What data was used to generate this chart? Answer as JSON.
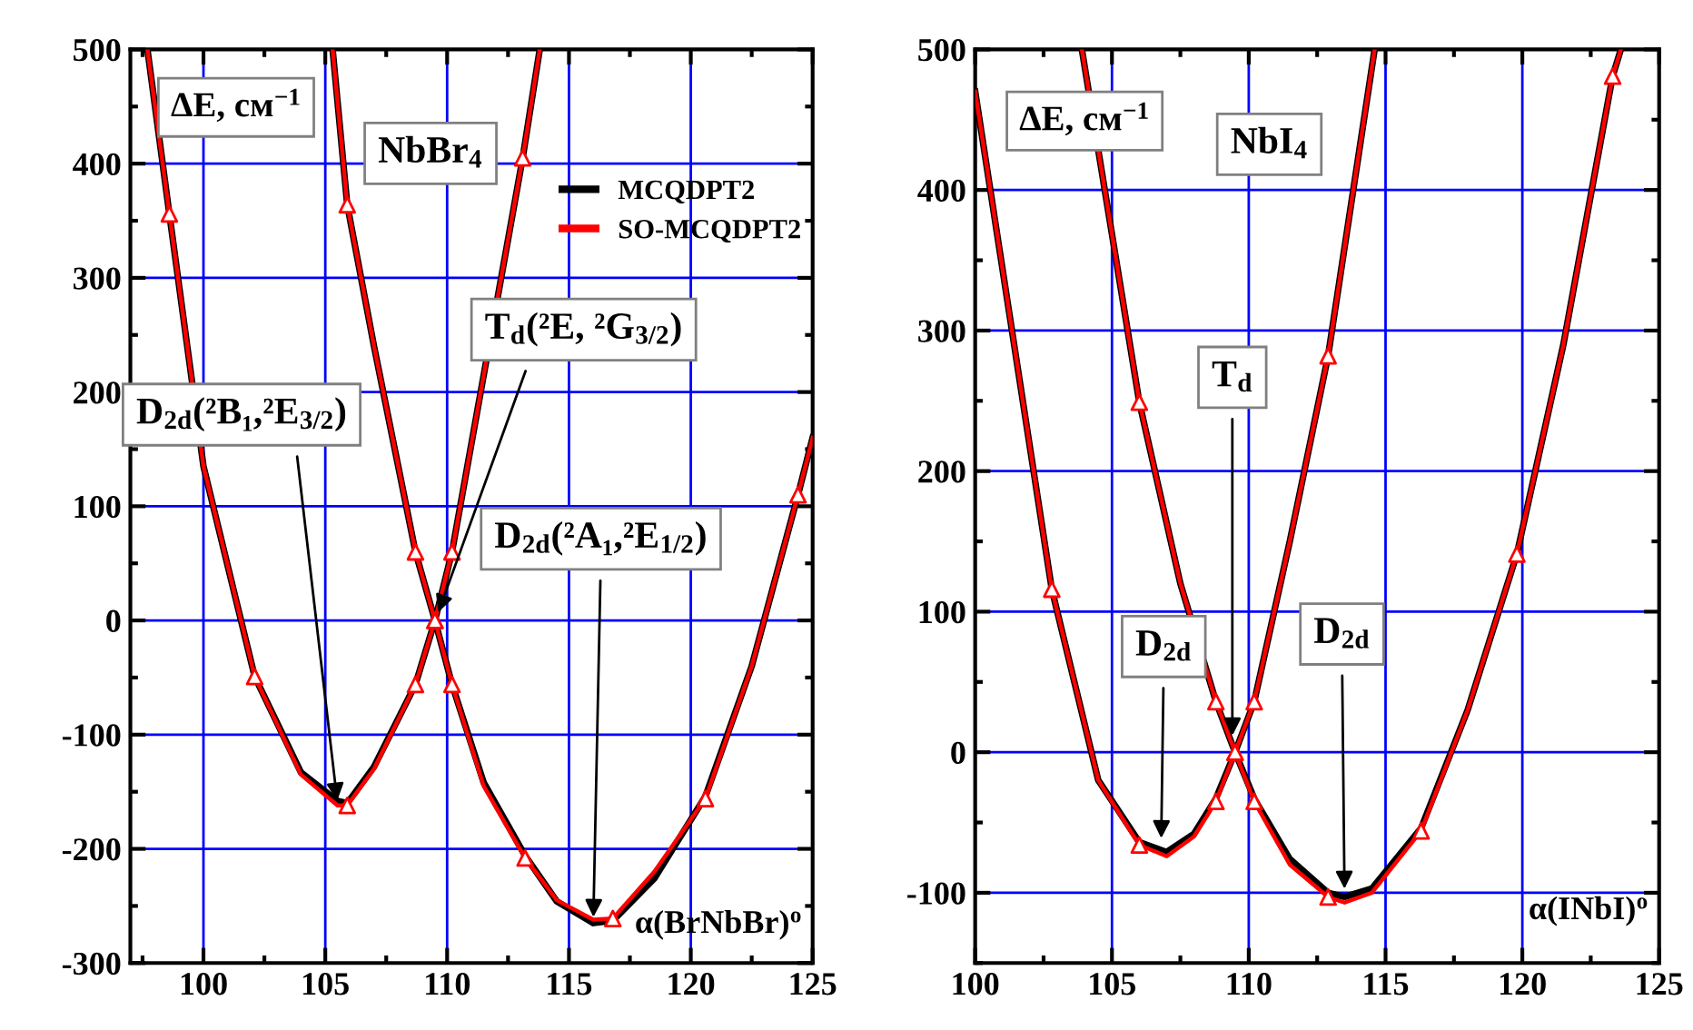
{
  "chart_data": [
    {
      "type": "line",
      "title": "NbBr$_{4}$",
      "ylabel": "ΔE, см$^{−1}$",
      "xlabel": "α(BrNbBr)$^{o}$",
      "xlim": [
        97,
        125
      ],
      "ylim": [
        -300,
        500
      ],
      "xticks": [
        100,
        105,
        110,
        115,
        120,
        125
      ],
      "yticks": [
        -300,
        -200,
        -100,
        0,
        100,
        200,
        300,
        400,
        500
      ],
      "grid": true,
      "legend": "top right",
      "annotations": [
        {
          "text": "T$_{d}$(²E, ²G$_{3/2}$)",
          "x": 109.6,
          "y": 5
        },
        {
          "text": "D$_{2d}$(²B₁,²E$_{3/2}$)",
          "x": 105.5,
          "y": -160
        },
        {
          "text": "D$_{2d}$(²A₁,²E$_{1/2}$)",
          "x": 116.0,
          "y": -262
        }
      ],
      "series": [
        {
          "name": "MCQDPT2",
          "color": "#000000",
          "x": [
            97.7,
            98.6,
            100,
            102.1,
            104,
            105.5,
            105.9,
            107,
            108.7,
            109.5,
            110.2,
            113.1,
            113.8
          ],
          "values": [
            500,
            356,
            135,
            -49,
            -133,
            -158,
            -160,
            -128,
            -56,
            0,
            60,
            405,
            500
          ]
        },
        {
          "color": "#000000",
          "x": [
            105.3,
            105.9,
            107,
            108.2,
            108.7,
            109.5,
            110.2,
            111.5,
            113.2,
            114.5,
            116.0,
            116.8,
            118.5,
            120.6,
            122.5,
            124.4,
            125
          ],
          "values": [
            500,
            364,
            240,
            113,
            60,
            0,
            -56,
            -142,
            -206,
            -246,
            -265,
            -263,
            -226,
            -154,
            -40,
            110,
            160
          ]
        },
        {
          "name": "SO-MCQDPT2",
          "color": "#ff0000",
          "x": [
            97.7,
            98.6,
            100,
            102.1,
            104,
            105.5,
            105.9,
            107,
            108.7,
            109.5,
            110.2,
            113.1,
            113.8
          ],
          "values": [
            500,
            356,
            135,
            -49,
            -135,
            -162,
            -162,
            -130,
            -56,
            0,
            60,
            405,
            500
          ]
        },
        {
          "color": "#ff0000",
          "x": [
            105.3,
            105.9,
            107,
            108.2,
            108.7,
            109.5,
            110.2,
            111.5,
            113.2,
            114.5,
            116.0,
            116.8,
            118.5,
            120.6,
            122.5,
            124.4,
            125
          ],
          "values": [
            500,
            364,
            240,
            113,
            60,
            0,
            -56,
            -145,
            -208,
            -245,
            -262,
            -261,
            -220,
            -156,
            -40,
            110,
            160
          ]
        },
        {
          "type": "scatter",
          "marker": "triangle",
          "color": "#ff0000",
          "x": [
            98.6,
            102.1,
            105.9,
            108.7,
            109.5,
            110.2,
            113.1
          ],
          "values": [
            356,
            -49,
            -162,
            -56,
            0,
            60,
            405
          ]
        },
        {
          "type": "scatter",
          "marker": "triangle",
          "color": "#ff0000",
          "x": [
            105.9,
            108.7,
            109.5,
            110.2,
            113.2,
            116.8,
            120.6,
            124.4
          ],
          "values": [
            364,
            60,
            0,
            -56,
            -208,
            -261,
            -156,
            110
          ]
        }
      ]
    },
    {
      "type": "line",
      "title": "NbI$_{4}$",
      "ylabel": "ΔE, см$^{−1}$",
      "xlabel": "α(INbI)$^{o}$",
      "xlim": [
        100,
        125
      ],
      "ylim": [
        -150,
        500
      ],
      "xticks": [
        100,
        105,
        110,
        115,
        120,
        125
      ],
      "yticks": [
        -100,
        0,
        100,
        200,
        300,
        400,
        500
      ],
      "grid": true,
      "legend": false,
      "annotations": [
        {
          "text": "T$_{d}$",
          "x": 109.4,
          "y": 10
        },
        {
          "text": "D$_{2d}$",
          "x": 106.8,
          "y": -63
        },
        {
          "text": "D$_{2d}$",
          "x": 113.5,
          "y": -99
        }
      ],
      "series": [
        {
          "color": "#000000",
          "x": [
            100,
            102.8,
            104.5,
            106.0,
            107.0,
            108.0,
            108.8,
            109.5,
            110.2,
            111.5,
            112.9,
            114.6
          ],
          "values": [
            470,
            116,
            -20,
            -64,
            -71,
            -58,
            -33,
            0,
            36,
            150,
            282,
            500
          ]
        },
        {
          "color": "#000000",
          "x": [
            103.9,
            106.0,
            107.5,
            108.8,
            109.5,
            110.2,
            111.5,
            112.9,
            113.5,
            114.5,
            116.3,
            118,
            119.8,
            121.5,
            123.3,
            123.6
          ],
          "values": [
            500,
            249,
            120,
            36,
            0,
            -33,
            -76,
            -100,
            -103,
            -97,
            -54,
            30,
            141,
            290,
            481,
            500
          ]
        },
        {
          "color": "#ff0000",
          "x": [
            100,
            102.8,
            104.5,
            106.0,
            107.0,
            108.0,
            108.8,
            109.5,
            110.2,
            111.5,
            112.9,
            114.6
          ],
          "values": [
            470,
            116,
            -20,
            -66,
            -74,
            -60,
            -35,
            0,
            36,
            150,
            282,
            500
          ]
        },
        {
          "color": "#ff0000",
          "x": [
            103.9,
            106.0,
            107.5,
            108.8,
            109.5,
            110.2,
            111.5,
            112.9,
            113.5,
            114.5,
            116.3,
            118,
            119.8,
            121.5,
            123.3,
            123.6
          ],
          "values": [
            500,
            249,
            120,
            36,
            0,
            -35,
            -80,
            -103,
            -107,
            -100,
            -56,
            30,
            141,
            290,
            481,
            500
          ]
        },
        {
          "type": "scatter",
          "marker": "triangle",
          "color": "#ff0000",
          "x": [
            102.8,
            106.0,
            108.8,
            109.5,
            110.2,
            112.9
          ],
          "values": [
            116,
            -66,
            -35,
            0,
            36,
            282
          ]
        },
        {
          "type": "scatter",
          "marker": "triangle",
          "color": "#ff0000",
          "x": [
            106.0,
            108.8,
            109.5,
            110.2,
            112.9,
            116.3,
            119.8,
            123.3
          ],
          "values": [
            249,
            36,
            0,
            -35,
            -103,
            -56,
            141,
            481
          ]
        }
      ]
    }
  ]
}
